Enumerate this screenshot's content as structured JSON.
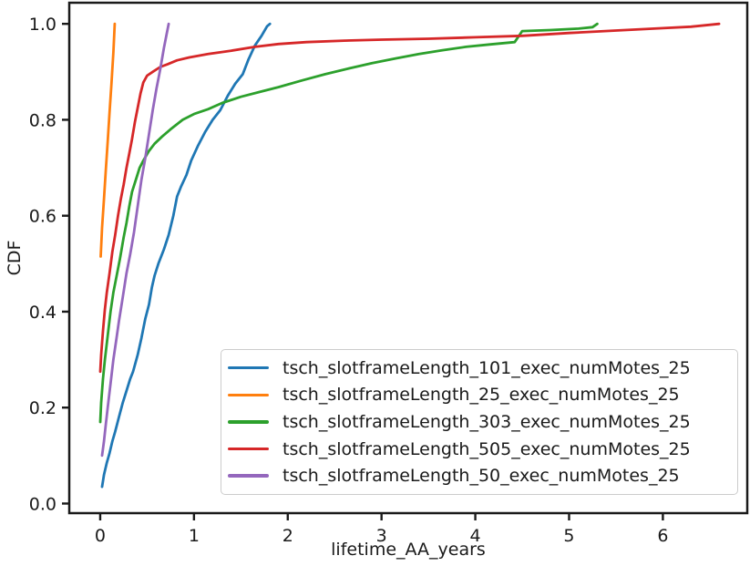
{
  "figure": {
    "xlabel": "lifetime_AA_years",
    "ylabel": "CDF"
  },
  "chart_data": {
    "type": "line",
    "subtype": "empirical-cdf",
    "title": "",
    "xlabel": "lifetime_AA_years",
    "ylabel": "CDF",
    "xlim": [
      -0.33,
      6.9
    ],
    "ylim": [
      -0.02,
      1.044
    ],
    "xticks": [
      {
        "v": 0,
        "label": "0"
      },
      {
        "v": 1,
        "label": "1"
      },
      {
        "v": 2,
        "label": "2"
      },
      {
        "v": 3,
        "label": "3"
      },
      {
        "v": 4,
        "label": "4"
      },
      {
        "v": 5,
        "label": "5"
      },
      {
        "v": 6,
        "label": "6"
      }
    ],
    "yticks": [
      {
        "v": 0.0,
        "label": "0.0"
      },
      {
        "v": 0.2,
        "label": "0.2"
      },
      {
        "v": 0.4,
        "label": "0.4"
      },
      {
        "v": 0.6,
        "label": "0.6"
      },
      {
        "v": 0.8,
        "label": "0.8"
      },
      {
        "v": 1.0,
        "label": "1.0"
      }
    ],
    "grid": false,
    "legend_position": "inside lower-right",
    "series": [
      {
        "name": "tsch_slotframeLength_101_exec_numMotes_25",
        "color": "#1f77b4",
        "points": [
          [
            0.02,
            0.035
          ],
          [
            0.04,
            0.06
          ],
          [
            0.07,
            0.085
          ],
          [
            0.1,
            0.105
          ],
          [
            0.13,
            0.13
          ],
          [
            0.16,
            0.15
          ],
          [
            0.2,
            0.18
          ],
          [
            0.24,
            0.21
          ],
          [
            0.28,
            0.235
          ],
          [
            0.32,
            0.26
          ],
          [
            0.35,
            0.275
          ],
          [
            0.4,
            0.31
          ],
          [
            0.44,
            0.345
          ],
          [
            0.48,
            0.385
          ],
          [
            0.52,
            0.415
          ],
          [
            0.55,
            0.45
          ],
          [
            0.58,
            0.475
          ],
          [
            0.62,
            0.5
          ],
          [
            0.68,
            0.53
          ],
          [
            0.73,
            0.56
          ],
          [
            0.78,
            0.6
          ],
          [
            0.82,
            0.64
          ],
          [
            0.86,
            0.66
          ],
          [
            0.92,
            0.685
          ],
          [
            0.97,
            0.715
          ],
          [
            1.04,
            0.745
          ],
          [
            1.12,
            0.775
          ],
          [
            1.2,
            0.8
          ],
          [
            1.28,
            0.82
          ],
          [
            1.36,
            0.85
          ],
          [
            1.44,
            0.875
          ],
          [
            1.52,
            0.895
          ],
          [
            1.58,
            0.925
          ],
          [
            1.65,
            0.955
          ],
          [
            1.72,
            0.975
          ],
          [
            1.78,
            0.995
          ],
          [
            1.81,
            1.0
          ]
        ]
      },
      {
        "name": "tsch_slotframeLength_25_exec_numMotes_25",
        "color": "#ff7f0e",
        "points": [
          [
            0.005,
            0.515
          ],
          [
            0.02,
            0.575
          ],
          [
            0.04,
            0.635
          ],
          [
            0.06,
            0.695
          ],
          [
            0.08,
            0.755
          ],
          [
            0.1,
            0.815
          ],
          [
            0.12,
            0.875
          ],
          [
            0.14,
            0.94
          ],
          [
            0.155,
            1.0
          ]
        ]
      },
      {
        "name": "tsch_slotframeLength_303_exec_numMotes_25",
        "color": "#2ca02c",
        "points": [
          [
            0.0,
            0.17
          ],
          [
            0.01,
            0.21
          ],
          [
            0.03,
            0.26
          ],
          [
            0.05,
            0.3
          ],
          [
            0.08,
            0.35
          ],
          [
            0.11,
            0.4
          ],
          [
            0.14,
            0.44
          ],
          [
            0.17,
            0.47
          ],
          [
            0.21,
            0.51
          ],
          [
            0.25,
            0.555
          ],
          [
            0.28,
            0.585
          ],
          [
            0.31,
            0.62
          ],
          [
            0.34,
            0.65
          ],
          [
            0.38,
            0.675
          ],
          [
            0.42,
            0.7
          ],
          [
            0.46,
            0.715
          ],
          [
            0.52,
            0.735
          ],
          [
            0.58,
            0.75
          ],
          [
            0.66,
            0.765
          ],
          [
            0.75,
            0.78
          ],
          [
            0.88,
            0.8
          ],
          [
            1.0,
            0.812
          ],
          [
            1.15,
            0.822
          ],
          [
            1.3,
            0.835
          ],
          [
            1.5,
            0.848
          ],
          [
            1.7,
            0.858
          ],
          [
            1.9,
            0.868
          ],
          [
            2.15,
            0.882
          ],
          [
            2.4,
            0.895
          ],
          [
            2.65,
            0.907
          ],
          [
            2.9,
            0.918
          ],
          [
            3.15,
            0.928
          ],
          [
            3.4,
            0.937
          ],
          [
            3.65,
            0.945
          ],
          [
            3.9,
            0.952
          ],
          [
            4.15,
            0.957
          ],
          [
            4.42,
            0.962
          ],
          [
            4.5,
            0.985
          ],
          [
            4.8,
            0.987
          ],
          [
            5.1,
            0.99
          ],
          [
            5.25,
            0.993
          ],
          [
            5.3,
            1.0
          ]
        ]
      },
      {
        "name": "tsch_slotframeLength_505_exec_numMotes_25",
        "color": "#d62728",
        "points": [
          [
            0.0,
            0.275
          ],
          [
            0.01,
            0.31
          ],
          [
            0.03,
            0.36
          ],
          [
            0.05,
            0.405
          ],
          [
            0.07,
            0.44
          ],
          [
            0.1,
            0.48
          ],
          [
            0.13,
            0.525
          ],
          [
            0.16,
            0.56
          ],
          [
            0.19,
            0.6
          ],
          [
            0.22,
            0.635
          ],
          [
            0.25,
            0.665
          ],
          [
            0.28,
            0.7
          ],
          [
            0.31,
            0.73
          ],
          [
            0.34,
            0.76
          ],
          [
            0.37,
            0.795
          ],
          [
            0.4,
            0.825
          ],
          [
            0.43,
            0.855
          ],
          [
            0.46,
            0.878
          ],
          [
            0.5,
            0.892
          ],
          [
            0.56,
            0.9
          ],
          [
            0.64,
            0.91
          ],
          [
            0.72,
            0.916
          ],
          [
            0.82,
            0.924
          ],
          [
            0.95,
            0.93
          ],
          [
            1.15,
            0.937
          ],
          [
            1.4,
            0.944
          ],
          [
            1.65,
            0.952
          ],
          [
            1.9,
            0.958
          ],
          [
            2.2,
            0.962
          ],
          [
            2.6,
            0.965
          ],
          [
            3.0,
            0.967
          ],
          [
            3.5,
            0.969
          ],
          [
            4.0,
            0.972
          ],
          [
            4.5,
            0.975
          ],
          [
            5.0,
            0.981
          ],
          [
            5.5,
            0.986
          ],
          [
            6.0,
            0.991
          ],
          [
            6.3,
            0.994
          ],
          [
            6.6,
            1.0
          ]
        ]
      },
      {
        "name": "tsch_slotframeLength_50_exec_numMotes_25",
        "color": "#9467bd",
        "points": [
          [
            0.02,
            0.1
          ],
          [
            0.04,
            0.13
          ],
          [
            0.06,
            0.165
          ],
          [
            0.08,
            0.2
          ],
          [
            0.11,
            0.25
          ],
          [
            0.14,
            0.3
          ],
          [
            0.17,
            0.34
          ],
          [
            0.2,
            0.38
          ],
          [
            0.24,
            0.43
          ],
          [
            0.28,
            0.48
          ],
          [
            0.32,
            0.52
          ],
          [
            0.36,
            0.565
          ],
          [
            0.4,
            0.62
          ],
          [
            0.44,
            0.675
          ],
          [
            0.48,
            0.72
          ],
          [
            0.52,
            0.77
          ],
          [
            0.56,
            0.82
          ],
          [
            0.6,
            0.865
          ],
          [
            0.64,
            0.905
          ],
          [
            0.68,
            0.95
          ],
          [
            0.71,
            0.98
          ],
          [
            0.73,
            1.0
          ]
        ]
      }
    ]
  }
}
